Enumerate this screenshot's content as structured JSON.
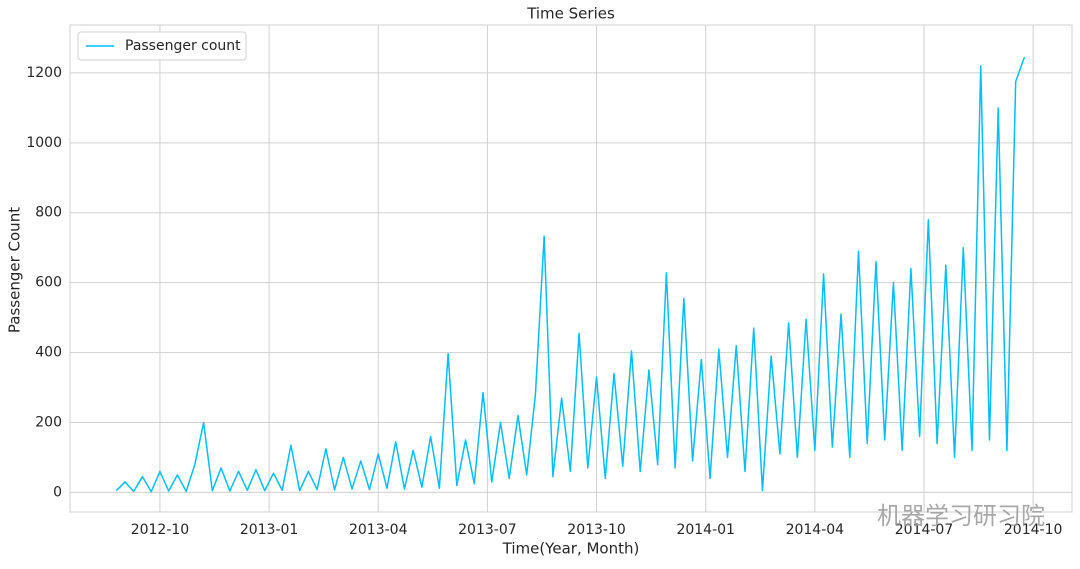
{
  "chart_data": {
    "type": "line",
    "title": "Time Series",
    "x_label": "Time(Year, Month)",
    "y_label": "Passenger Count",
    "x": [
      2012.65,
      2012.67,
      2012.69,
      2012.71,
      2012.73,
      2012.75,
      2012.77,
      2012.79,
      2012.81,
      2012.83,
      2012.85,
      2012.87,
      2012.89,
      2012.91,
      2012.93,
      2012.95,
      2012.97,
      2012.99,
      2013.01,
      2013.03,
      2013.05,
      2013.07,
      2013.09,
      2013.11,
      2013.13,
      2013.15,
      2013.17,
      2013.19,
      2013.21,
      2013.23,
      2013.25,
      2013.27,
      2013.29,
      2013.31,
      2013.33,
      2013.35,
      2013.37,
      2013.39,
      2013.41,
      2013.43,
      2013.45,
      2013.47,
      2013.49,
      2013.51,
      2013.53,
      2013.55,
      2013.57,
      2013.59,
      2013.61,
      2013.63,
      2013.65,
      2013.67,
      2013.69,
      2013.71,
      2013.73,
      2013.75,
      2013.77,
      2013.79,
      2013.81,
      2013.83,
      2013.85,
      2013.87,
      2013.89,
      2013.91,
      2013.93,
      2013.95,
      2013.97,
      2013.99,
      2014.01,
      2014.03,
      2014.05,
      2014.07,
      2014.09,
      2014.11,
      2014.13,
      2014.15,
      2014.17,
      2014.19,
      2014.21,
      2014.23,
      2014.25,
      2014.27,
      2014.29,
      2014.31,
      2014.33,
      2014.35,
      2014.37,
      2014.39,
      2014.41,
      2014.43,
      2014.45,
      2014.47,
      2014.49,
      2014.51,
      2014.53,
      2014.55,
      2014.57,
      2014.59,
      2014.61,
      2014.63,
      2014.65,
      2014.67,
      2014.69,
      2014.71,
      2014.73
    ],
    "series": [
      {
        "name": "Passenger count",
        "color": "#00bfff",
        "values": [
          5,
          30,
          3,
          45,
          2,
          60,
          4,
          50,
          3,
          80,
          200,
          5,
          70,
          4,
          60,
          6,
          65,
          5,
          55,
          6,
          135,
          5,
          60,
          8,
          125,
          7,
          100,
          10,
          90,
          8,
          110,
          12,
          145,
          10,
          120,
          15,
          160,
          12,
          397,
          20,
          150,
          25,
          285,
          30,
          200,
          40,
          220,
          50,
          280,
          733,
          45,
          270,
          60,
          455,
          70,
          330,
          40,
          340,
          75,
          405,
          60,
          350,
          80,
          628,
          70,
          555,
          90,
          380,
          40,
          410,
          100,
          420,
          60,
          470,
          5,
          390,
          110,
          485,
          100,
          495,
          120,
          625,
          130,
          510,
          100,
          690,
          140,
          660,
          150,
          600,
          120,
          640,
          160,
          780,
          140,
          650,
          100,
          700,
          120,
          1220,
          150,
          1100,
          120,
          1175,
          1245
        ]
      }
    ],
    "xlim": [
      2012.544,
      2014.839
    ],
    "xticks": [
      {
        "value": 2012.75,
        "label": "2012-10"
      },
      {
        "value": 2013.0,
        "label": "2013-01"
      },
      {
        "value": 2013.25,
        "label": "2013-04"
      },
      {
        "value": 2013.5,
        "label": "2013-07"
      },
      {
        "value": 2013.75,
        "label": "2013-10"
      },
      {
        "value": 2014.0,
        "label": "2014-01"
      },
      {
        "value": 2014.25,
        "label": "2014-04"
      },
      {
        "value": 2014.5,
        "label": "2014-07"
      },
      {
        "value": 2014.75,
        "label": "2014-10"
      }
    ],
    "ylim": [
      -56,
      1337
    ],
    "yticks": [
      0,
      200,
      400,
      600,
      800,
      1000,
      1200
    ],
    "grid": true,
    "legend": "upper left",
    "watermark": "机器学习研习院"
  }
}
